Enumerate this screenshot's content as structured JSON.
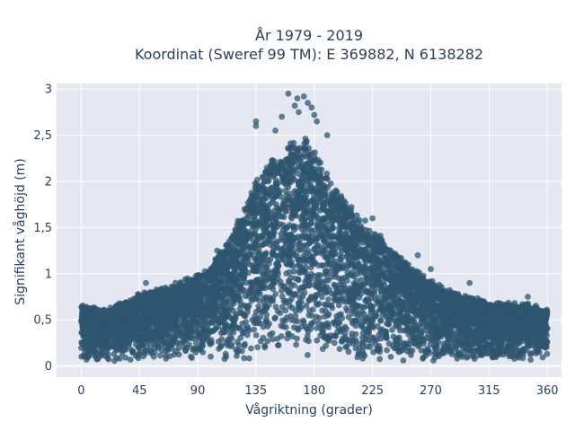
{
  "chart_data": {
    "type": "scatter",
    "title_line1": "År 1979 - 2019",
    "title_line2": "Koordinat (Sweref 99 TM): E 369882, N 6138282",
    "xlabel": "Vågriktning (grader)",
    "ylabel": "Signifikant våghöjd (m)",
    "xlim": [
      -19,
      371
    ],
    "ylim": [
      -0.12,
      3.06
    ],
    "xticks": [
      {
        "value": 0,
        "label": "0"
      },
      {
        "value": 45,
        "label": "45"
      },
      {
        "value": 90,
        "label": "90"
      },
      {
        "value": 135,
        "label": "135"
      },
      {
        "value": 180,
        "label": "180"
      },
      {
        "value": 225,
        "label": "225"
      },
      {
        "value": 270,
        "label": "270"
      },
      {
        "value": 315,
        "label": "315"
      },
      {
        "value": 360,
        "label": "360"
      }
    ],
    "yticks": [
      {
        "value": 0,
        "label": "0"
      },
      {
        "value": 0.5,
        "label": "0,5"
      },
      {
        "value": 1,
        "label": "1"
      },
      {
        "value": 1.5,
        "label": "1,5"
      },
      {
        "value": 2,
        "label": "2"
      },
      {
        "value": 2.5,
        "label": "2,5"
      },
      {
        "value": 3,
        "label": "3"
      }
    ],
    "grid": true,
    "marker_color": "#2f5670",
    "plot_bg": "#e5e8f0",
    "envelope": [
      {
        "x": 0,
        "y": 0.68
      },
      {
        "x": 20,
        "y": 0.62
      },
      {
        "x": 45,
        "y": 0.8
      },
      {
        "x": 60,
        "y": 0.85
      },
      {
        "x": 90,
        "y": 1.0
      },
      {
        "x": 100,
        "y": 1.1
      },
      {
        "x": 110,
        "y": 1.3
      },
      {
        "x": 120,
        "y": 1.55
      },
      {
        "x": 130,
        "y": 1.9
      },
      {
        "x": 135,
        "y": 2.05
      },
      {
        "x": 145,
        "y": 2.25
      },
      {
        "x": 160,
        "y": 2.45
      },
      {
        "x": 170,
        "y": 2.5
      },
      {
        "x": 180,
        "y": 2.45
      },
      {
        "x": 190,
        "y": 2.1
      },
      {
        "x": 200,
        "y": 1.9
      },
      {
        "x": 210,
        "y": 1.75
      },
      {
        "x": 225,
        "y": 1.5
      },
      {
        "x": 240,
        "y": 1.3
      },
      {
        "x": 255,
        "y": 1.1
      },
      {
        "x": 270,
        "y": 0.95
      },
      {
        "x": 290,
        "y": 0.8
      },
      {
        "x": 315,
        "y": 0.7
      },
      {
        "x": 340,
        "y": 0.7
      },
      {
        "x": 360,
        "y": 0.62
      }
    ],
    "baseline_floor": 0.05,
    "outliers": [
      {
        "x": 160,
        "y": 2.95
      },
      {
        "x": 167,
        "y": 2.9
      },
      {
        "x": 172,
        "y": 2.92
      },
      {
        "x": 165,
        "y": 2.82
      },
      {
        "x": 175,
        "y": 2.85
      },
      {
        "x": 178,
        "y": 2.8
      },
      {
        "x": 135,
        "y": 2.65
      },
      {
        "x": 135,
        "y": 2.6
      },
      {
        "x": 180,
        "y": 2.72
      },
      {
        "x": 182,
        "y": 2.65
      },
      {
        "x": 155,
        "y": 2.7
      },
      {
        "x": 150,
        "y": 2.55
      },
      {
        "x": 190,
        "y": 2.5
      },
      {
        "x": 168,
        "y": 2.75
      },
      {
        "x": 225,
        "y": 1.6
      },
      {
        "x": 260,
        "y": 1.2
      },
      {
        "x": 270,
        "y": 1.05
      },
      {
        "x": 300,
        "y": 0.9
      },
      {
        "x": 345,
        "y": 0.75
      },
      {
        "x": 50,
        "y": 0.9
      },
      {
        "x": 65,
        "y": 0.85
      },
      {
        "x": 105,
        "y": 1.25
      }
    ]
  }
}
